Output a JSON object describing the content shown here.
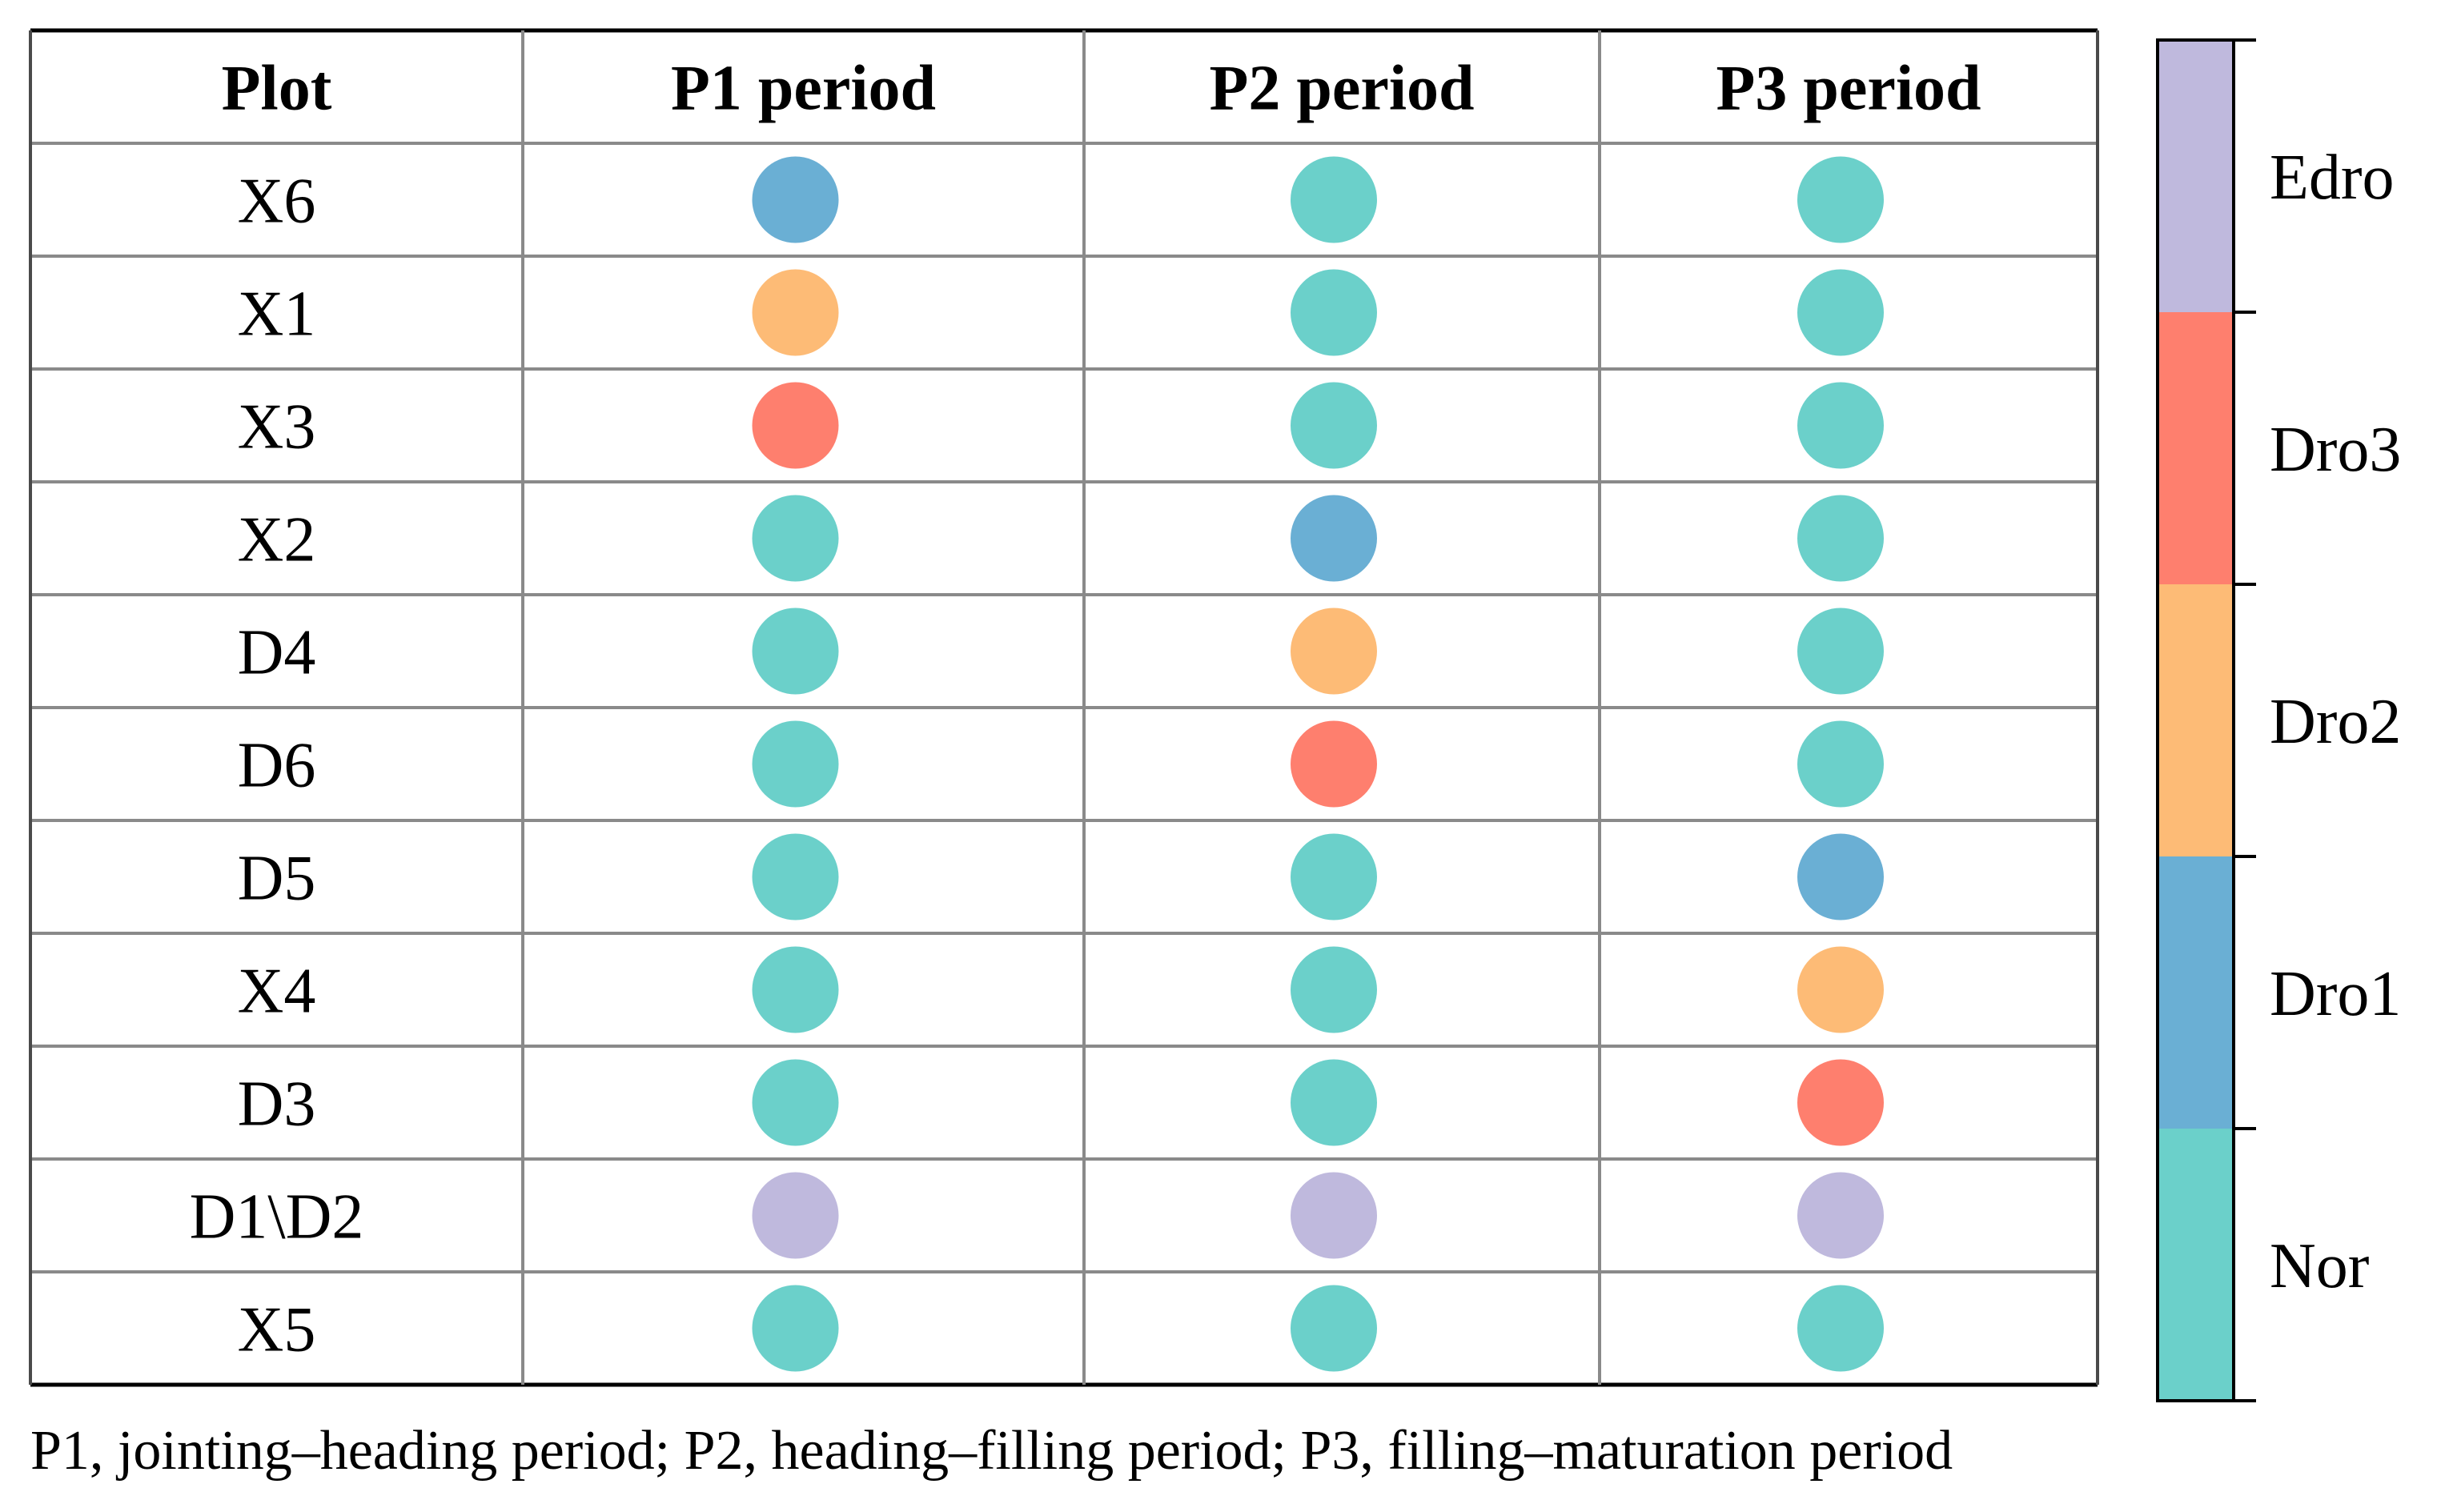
{
  "chart_data": {
    "type": "table",
    "columns": [
      "Plot",
      "P1 period",
      "P2 period",
      "P3 period"
    ],
    "rows": [
      {
        "plot": "X6",
        "values": [
          "Dro1",
          "Nor",
          "Nor"
        ]
      },
      {
        "plot": "X1",
        "values": [
          "Dro2",
          "Nor",
          "Nor"
        ]
      },
      {
        "plot": "X3",
        "values": [
          "Dro3",
          "Nor",
          "Nor"
        ]
      },
      {
        "plot": "X2",
        "values": [
          "Nor",
          "Dro1",
          "Nor"
        ]
      },
      {
        "plot": "D4",
        "values": [
          "Nor",
          "Dro2",
          "Nor"
        ]
      },
      {
        "plot": "D6",
        "values": [
          "Nor",
          "Dro3",
          "Nor"
        ]
      },
      {
        "plot": "D5",
        "values": [
          "Nor",
          "Nor",
          "Dro1"
        ]
      },
      {
        "plot": "X4",
        "values": [
          "Nor",
          "Nor",
          "Dro2"
        ]
      },
      {
        "plot": "D3",
        "values": [
          "Nor",
          "Nor",
          "Dro3"
        ]
      },
      {
        "plot": "D1\\D2",
        "values": [
          "Edro",
          "Edro",
          "Edro"
        ]
      },
      {
        "plot": "X5",
        "values": [
          "Nor",
          "Nor",
          "Nor"
        ]
      }
    ],
    "legend": {
      "categories": [
        "Nor",
        "Dro1",
        "Dro2",
        "Dro3",
        "Edro"
      ],
      "colors": {
        "Nor": "#6BD0CA",
        "Dro1": "#6AAFD4",
        "Dro2": "#FDBB76",
        "Dro3": "#FE7F6E",
        "Edro": "#BFB9DD"
      }
    },
    "footnote": "P1, jointing–heading period; P2, heading–filling period; P3, filling–maturation period"
  }
}
